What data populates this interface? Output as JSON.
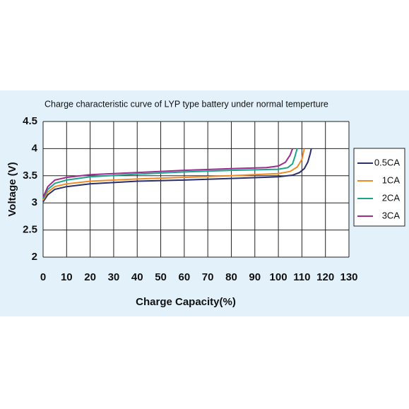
{
  "chart_data": {
    "type": "line",
    "title": "Charge characteristic curve of LYP type battery under normal temperture",
    "xlabel": "Charge Capacity(%)",
    "ylabel": "Voltage (V)",
    "xlim": [
      0,
      130
    ],
    "xticks": [
      0,
      10,
      20,
      30,
      40,
      50,
      60,
      70,
      80,
      90,
      100,
      110,
      120,
      130
    ],
    "ylim": [
      2,
      4.5
    ],
    "yticks": [
      2,
      2.5,
      3,
      3.5,
      4,
      4.5
    ],
    "grid": true,
    "legend": "right",
    "series": [
      {
        "name": "0.5CA",
        "color": "#2a2f6e",
        "x": [
          0,
          2,
          5,
          10,
          20,
          40,
          60,
          80,
          100,
          106,
          109,
          111,
          112.5,
          113.5,
          114
        ],
        "values": [
          3.02,
          3.15,
          3.25,
          3.3,
          3.35,
          3.4,
          3.42,
          3.45,
          3.48,
          3.51,
          3.56,
          3.63,
          3.75,
          3.9,
          4.0
        ]
      },
      {
        "name": "1CA",
        "color": "#f08a24",
        "x": [
          0,
          2,
          5,
          10,
          20,
          40,
          60,
          80,
          100,
          105,
          108,
          110,
          111
        ],
        "values": [
          3.05,
          3.2,
          3.3,
          3.35,
          3.4,
          3.44,
          3.47,
          3.5,
          3.54,
          3.58,
          3.66,
          3.8,
          4.0
        ]
      },
      {
        "name": "2CA",
        "color": "#1aa58a",
        "x": [
          0,
          2,
          5,
          10,
          20,
          40,
          60,
          80,
          100,
          104,
          106,
          107,
          108
        ],
        "values": [
          3.08,
          3.25,
          3.36,
          3.42,
          3.48,
          3.53,
          3.57,
          3.6,
          3.62,
          3.65,
          3.72,
          3.85,
          4.0
        ]
      },
      {
        "name": "3CA",
        "color": "#9b2d8e",
        "x": [
          0,
          2,
          5,
          10,
          20,
          40,
          60,
          80,
          95,
          100,
          103,
          105,
          106
        ],
        "values": [
          3.1,
          3.3,
          3.42,
          3.47,
          3.52,
          3.56,
          3.6,
          3.63,
          3.65,
          3.68,
          3.75,
          3.88,
          4.0
        ]
      }
    ]
  }
}
